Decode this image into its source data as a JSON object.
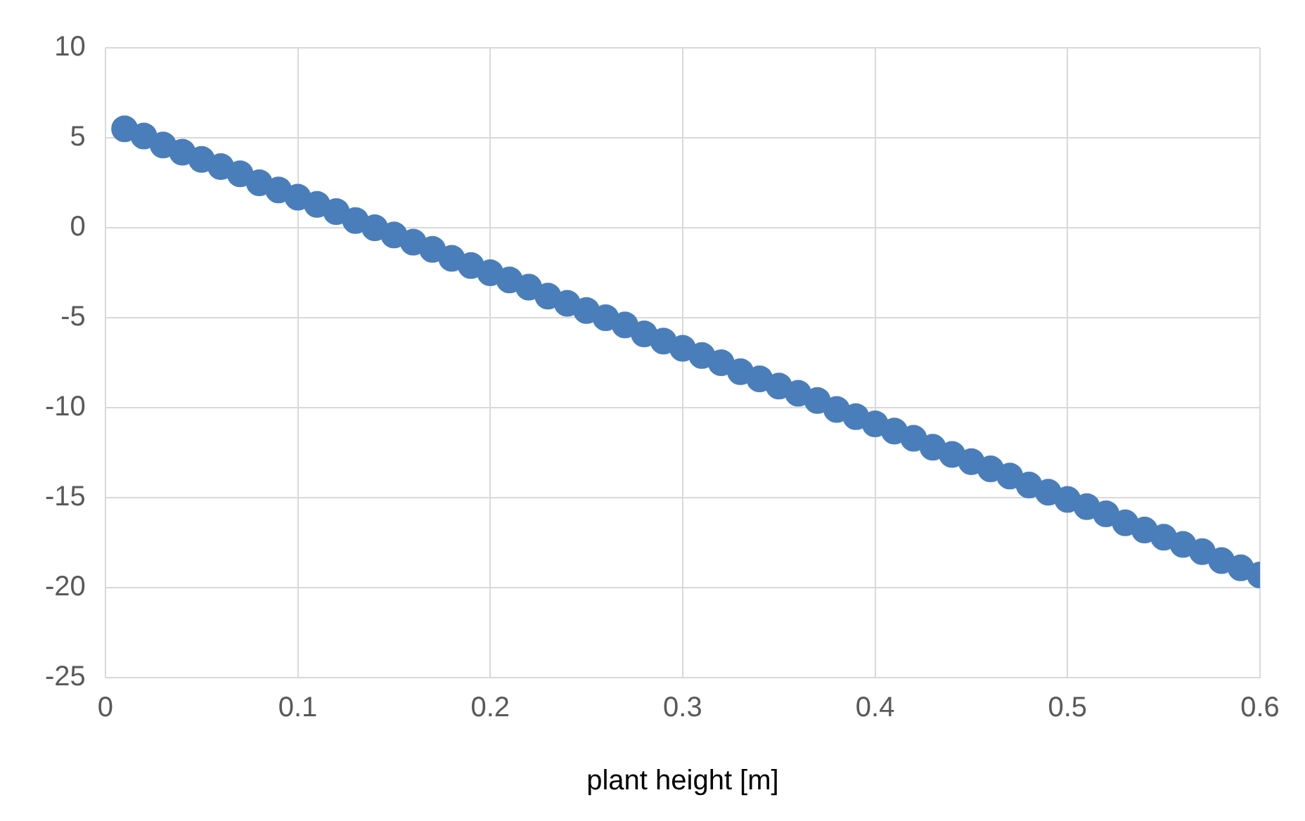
{
  "chart_data": {
    "type": "scatter",
    "xlabel": "plant height [m]",
    "x": [
      0.01,
      0.02,
      0.03,
      0.04,
      0.05,
      0.06,
      0.07,
      0.08,
      0.09,
      0.1,
      0.11,
      0.12,
      0.13,
      0.14,
      0.15,
      0.16,
      0.17,
      0.18,
      0.19,
      0.2,
      0.21,
      0.22,
      0.23,
      0.24,
      0.25,
      0.26,
      0.27,
      0.28,
      0.29,
      0.3,
      0.31,
      0.32,
      0.33,
      0.34,
      0.35,
      0.36,
      0.37,
      0.38,
      0.39,
      0.4,
      0.41,
      0.42,
      0.43,
      0.44,
      0.45,
      0.46,
      0.47,
      0.48,
      0.49,
      0.5,
      0.51,
      0.52,
      0.53,
      0.54,
      0.55,
      0.56,
      0.57,
      0.58,
      0.59,
      0.6
    ],
    "series": [
      {
        "color": "#4a7ebb",
        "values": [
          5.5,
          5.1,
          4.6,
          4.2,
          3.8,
          3.4,
          3.0,
          2.5,
          2.1,
          1.7,
          1.3,
          0.9,
          0.4,
          0.0,
          -0.4,
          -0.8,
          -1.2,
          -1.7,
          -2.1,
          -2.5,
          -2.9,
          -3.3,
          -3.8,
          -4.2,
          -4.6,
          -5.0,
          -5.4,
          -5.9,
          -6.3,
          -6.7,
          -7.1,
          -7.5,
          -8.0,
          -8.4,
          -8.8,
          -9.2,
          -9.6,
          -10.1,
          -10.5,
          -10.9,
          -11.3,
          -11.7,
          -12.2,
          -12.6,
          -13.0,
          -13.4,
          -13.8,
          -14.3,
          -14.7,
          -15.1,
          -15.5,
          -15.9,
          -16.4,
          -16.8,
          -17.2,
          -17.6,
          -18.0,
          -18.5,
          -18.9,
          -19.3
        ]
      }
    ],
    "xlim": [
      0,
      0.6
    ],
    "xticks": [
      0,
      0.1,
      0.2,
      0.3,
      0.4,
      0.5,
      0.6
    ],
    "ylim": [
      -25,
      10
    ],
    "yticks": [
      -25,
      -20,
      -15,
      -10,
      -5,
      0,
      5,
      10
    ],
    "grid": true,
    "marker": "circle",
    "legend": false
  }
}
